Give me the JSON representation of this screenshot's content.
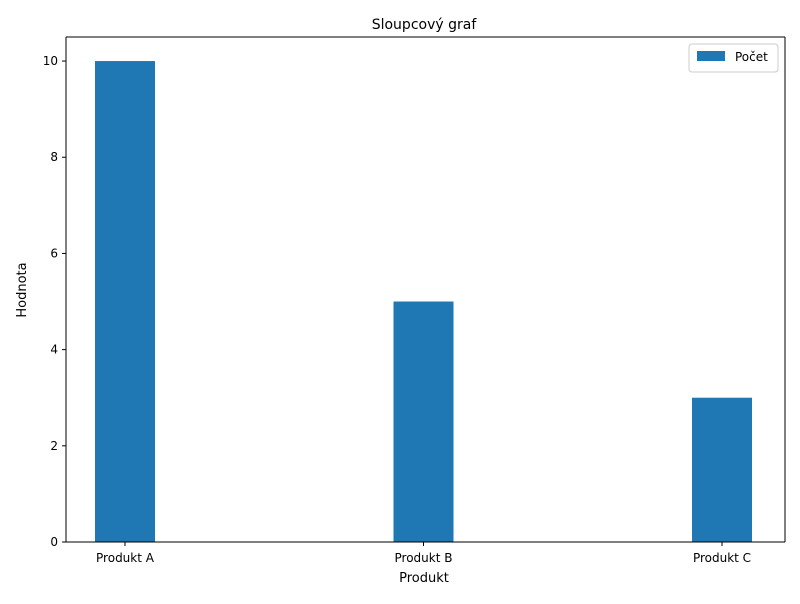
{
  "chart_data": {
    "type": "bar",
    "title": "Sloupcový graf",
    "xlabel": "Produkt",
    "ylabel": "Hodnota",
    "categories": [
      "Produkt A",
      "Produkt B",
      "Produkt C"
    ],
    "series": [
      {
        "name": "Počet",
        "values": [
          10,
          5,
          3
        ],
        "color": "#1f77b4"
      }
    ],
    "ylim": [
      0,
      10.5
    ],
    "yticks": [
      0,
      2,
      4,
      6,
      8,
      10
    ],
    "grid": false,
    "legend": "top-right"
  }
}
